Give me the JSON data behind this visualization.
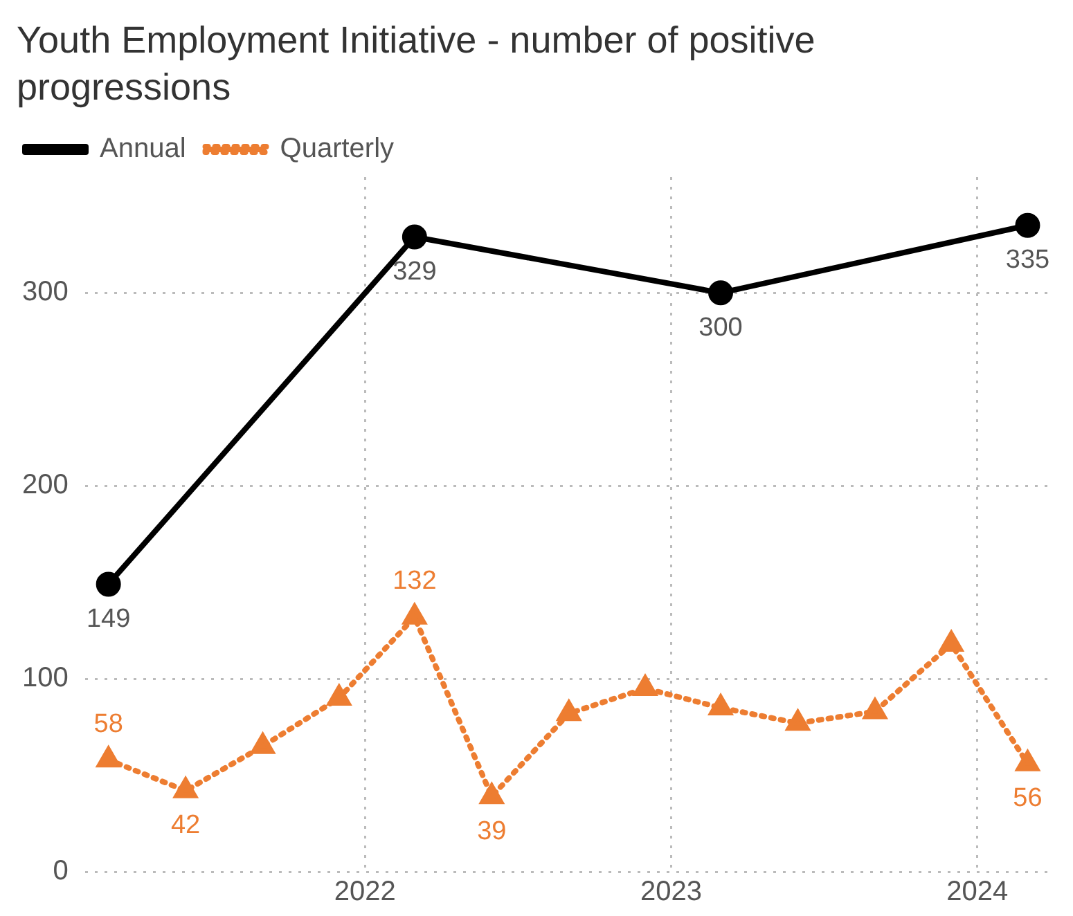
{
  "chart_data": {
    "type": "line",
    "title": "Youth Employment Initiative - number of positive progressions",
    "x": [
      "2021-03",
      "2021-06",
      "2021-09",
      "2021-12",
      "2022-03",
      "2022-06",
      "2022-09",
      "2022-12",
      "2023-03",
      "2023-06",
      "2023-09",
      "2023-12",
      "2024-03"
    ],
    "series": [
      {
        "name": "Annual",
        "color": "#000000",
        "marker": "circle",
        "line_style": "solid",
        "x": [
          "2021-03",
          "2022-03",
          "2023-03",
          "2024-03"
        ],
        "values": [
          149,
          329,
          300,
          335
        ],
        "value_labels": [
          "149",
          "329",
          "300",
          "335"
        ]
      },
      {
        "name": "Quarterly",
        "color": "#ed7d31",
        "marker": "triangle",
        "line_style": "dotted",
        "values": [
          58,
          42,
          65,
          90,
          132,
          39,
          82,
          95,
          85,
          77,
          83,
          118,
          56
        ],
        "value_labels": [
          "58",
          "42",
          null,
          null,
          "132",
          "39",
          null,
          null,
          null,
          null,
          null,
          null,
          "56"
        ]
      }
    ],
    "xlim": [
      "2021-02",
      "2024-04"
    ],
    "xticks": [
      "2022",
      "2023",
      "2024"
    ],
    "ylim": [
      0,
      360
    ],
    "yticks": [
      0,
      100,
      200,
      300
    ],
    "grid": true,
    "legend": "top left"
  }
}
